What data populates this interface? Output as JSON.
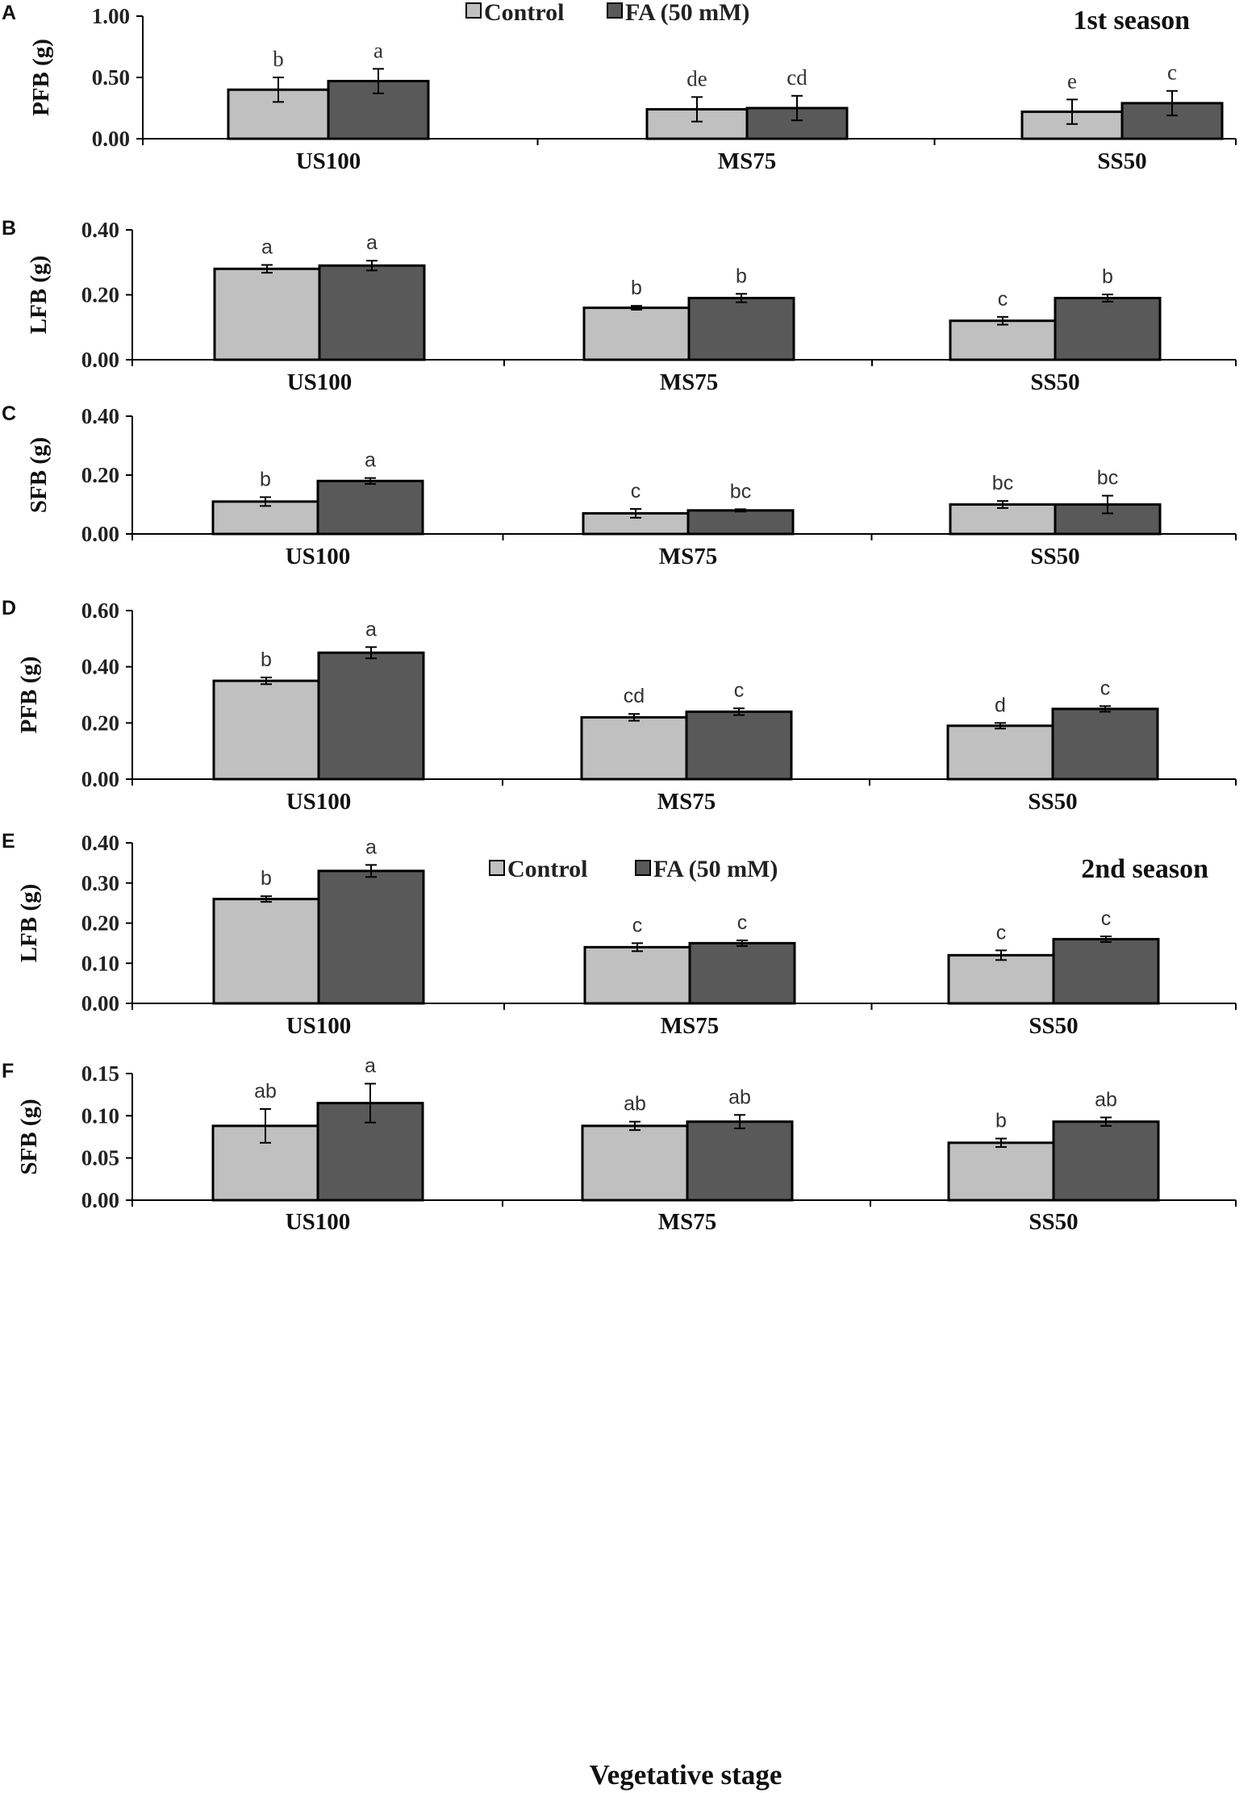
{
  "colors": {
    "control": "#c0c0c0",
    "fa": "#595959",
    "outline": "#000000"
  },
  "legend": {
    "control": "Control",
    "fa": "FA (50 mM)"
  },
  "x_title": "Vegetative stage",
  "chart_data": [
    {
      "panel": "A",
      "type": "bar",
      "season": "1st  season",
      "ylabel": "PFB (g)",
      "categories": [
        "US100",
        "MS75",
        "SS50"
      ],
      "ylim": [
        0,
        1
      ],
      "ticks": [
        "0.00",
        "0.50",
        "1.00"
      ],
      "tick_values": [
        0,
        0.5,
        1
      ],
      "series": [
        {
          "name": "Control",
          "values": [
            0.4,
            0.24,
            0.22
          ],
          "errors": [
            0.1,
            0.1,
            0.1
          ],
          "letters": [
            "b",
            "de",
            "e"
          ]
        },
        {
          "name": "FA (50 mM)",
          "values": [
            0.47,
            0.25,
            0.29
          ],
          "errors": [
            0.1,
            0.1,
            0.1
          ],
          "letters": [
            "a",
            "cd",
            "c"
          ]
        }
      ]
    },
    {
      "panel": "B",
      "type": "bar",
      "ylabel": "LFB (g)",
      "categories": [
        "US100",
        "MS75",
        "SS50"
      ],
      "ylim": [
        0,
        0.4
      ],
      "ticks": [
        "0.00",
        "0.20",
        "0.40"
      ],
      "tick_values": [
        0,
        0.2,
        0.4
      ],
      "series": [
        {
          "name": "Control",
          "values": [
            0.28,
            0.16,
            0.12
          ],
          "errors": [
            0.012,
            0.006,
            0.012
          ],
          "letters": [
            "a",
            "b",
            "c"
          ]
        },
        {
          "name": "FA (50 mM)",
          "values": [
            0.29,
            0.19,
            0.19
          ],
          "errors": [
            0.015,
            0.013,
            0.011
          ],
          "letters": [
            "a",
            "b",
            "b"
          ]
        }
      ]
    },
    {
      "panel": "C",
      "type": "bar",
      "ylabel": "SFB (g)",
      "categories": [
        "US100",
        "MS75",
        "SS50"
      ],
      "ylim": [
        0,
        0.4
      ],
      "ticks": [
        "0.00",
        "0.20",
        "0.40"
      ],
      "tick_values": [
        0,
        0.2,
        0.4
      ],
      "series": [
        {
          "name": "Control",
          "values": [
            0.11,
            0.07,
            0.1
          ],
          "errors": [
            0.015,
            0.015,
            0.012
          ],
          "letters": [
            "b",
            "c",
            "bc"
          ]
        },
        {
          "name": "FA (50 mM)",
          "values": [
            0.18,
            0.08,
            0.1
          ],
          "errors": [
            0.01,
            0.004,
            0.03
          ],
          "letters": [
            "a",
            "bc",
            "bc"
          ]
        }
      ]
    },
    {
      "panel": "D",
      "type": "bar",
      "season": "2nd season",
      "ylabel": "PFB (g)",
      "categories": [
        "US100",
        "MS75",
        "SS50"
      ],
      "ylim": [
        0,
        0.6
      ],
      "ticks": [
        "0.00",
        "0.20",
        "0.40",
        "0.60"
      ],
      "tick_values": [
        0,
        0.2,
        0.4,
        0.6
      ],
      "series": [
        {
          "name": "Control",
          "values": [
            0.35,
            0.22,
            0.19
          ],
          "errors": [
            0.012,
            0.012,
            0.01
          ],
          "letters": [
            "b",
            "cd",
            "d"
          ]
        },
        {
          "name": "FA (50 mM)",
          "values": [
            0.45,
            0.24,
            0.25
          ],
          "errors": [
            0.02,
            0.012,
            0.01
          ],
          "letters": [
            "a",
            "c",
            "c"
          ]
        }
      ]
    },
    {
      "panel": "E",
      "type": "bar",
      "ylabel": "LFB (g)",
      "categories": [
        "US100",
        "MS75",
        "SS50"
      ],
      "ylim": [
        0,
        0.4
      ],
      "ticks": [
        "0.00",
        "0.10",
        "0.20",
        "0.30",
        "0.40"
      ],
      "tick_values": [
        0,
        0.1,
        0.2,
        0.3,
        0.4
      ],
      "series": [
        {
          "name": "Control",
          "values": [
            0.26,
            0.14,
            0.12
          ],
          "errors": [
            0.007,
            0.01,
            0.012
          ],
          "letters": [
            "b",
            "c",
            "c"
          ]
        },
        {
          "name": "FA (50 mM)",
          "values": [
            0.33,
            0.15,
            0.16
          ],
          "errors": [
            0.015,
            0.007,
            0.007
          ],
          "letters": [
            "a",
            "c",
            "c"
          ]
        }
      ]
    },
    {
      "panel": "F",
      "type": "bar",
      "ylabel": "SFB (g)",
      "categories": [
        "US100",
        "MS75",
        "SS50"
      ],
      "ylim": [
        0,
        0.15
      ],
      "ticks": [
        "0.00",
        "0.05",
        "0.10",
        "0.15"
      ],
      "tick_values": [
        0,
        0.05,
        0.1,
        0.15
      ],
      "series": [
        {
          "name": "Control",
          "values": [
            0.088,
            0.088,
            0.068
          ],
          "errors": [
            0.02,
            0.005,
            0.005
          ],
          "letters": [
            "ab",
            "ab",
            "b"
          ]
        },
        {
          "name": "FA (50 mM)",
          "values": [
            0.115,
            0.093,
            0.093
          ],
          "errors": [
            0.023,
            0.008,
            0.005
          ],
          "letters": [
            "a",
            "ab",
            "ab"
          ]
        }
      ]
    }
  ]
}
